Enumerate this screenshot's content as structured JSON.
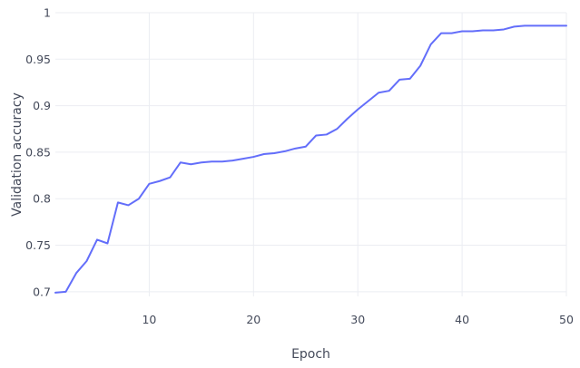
{
  "chart_data": {
    "type": "line",
    "title": "",
    "xlabel": "Epoch",
    "ylabel": "Validation accuracy",
    "xlim": [
      1,
      50
    ],
    "ylim": [
      0.695,
      1.0
    ],
    "x_ticks": [
      10,
      20,
      30,
      40,
      50
    ],
    "y_ticks": [
      0.7,
      0.75,
      0.8,
      0.85,
      0.9,
      0.95,
      1
    ],
    "x_tick_labels": [
      "10",
      "20",
      "30",
      "40",
      "50"
    ],
    "y_tick_labels": [
      "0.7",
      "0.75",
      "0.8",
      "0.85",
      "0.9",
      "0.95",
      "1"
    ],
    "grid": true,
    "legend": false,
    "colors": {
      "line": "#636efa",
      "grid": "#ebedf2",
      "text": "#444a5a"
    },
    "series": [
      {
        "x": [
          1,
          2,
          3,
          4,
          5,
          6,
          7,
          8,
          9,
          10,
          11,
          12,
          13,
          14,
          15,
          16,
          17,
          18,
          19,
          20,
          21,
          22,
          23,
          24,
          25,
          26,
          27,
          28,
          29,
          30,
          31,
          32,
          33,
          34,
          35,
          36,
          37,
          38,
          39,
          40,
          41,
          42,
          43,
          44,
          45,
          46,
          47,
          48,
          49,
          50
        ],
        "y": [
          0.699,
          0.7,
          0.72,
          0.733,
          0.756,
          0.752,
          0.796,
          0.793,
          0.8,
          0.816,
          0.819,
          0.823,
          0.839,
          0.837,
          0.839,
          0.84,
          0.84,
          0.841,
          0.843,
          0.845,
          0.848,
          0.849,
          0.851,
          0.854,
          0.856,
          0.868,
          0.869,
          0.875,
          0.886,
          0.896,
          0.905,
          0.914,
          0.916,
          0.928,
          0.929,
          0.943,
          0.966,
          0.978,
          0.978,
          0.98,
          0.98,
          0.981,
          0.981,
          0.982,
          0.985,
          0.986,
          0.986,
          0.986,
          0.986,
          0.986
        ]
      }
    ]
  }
}
